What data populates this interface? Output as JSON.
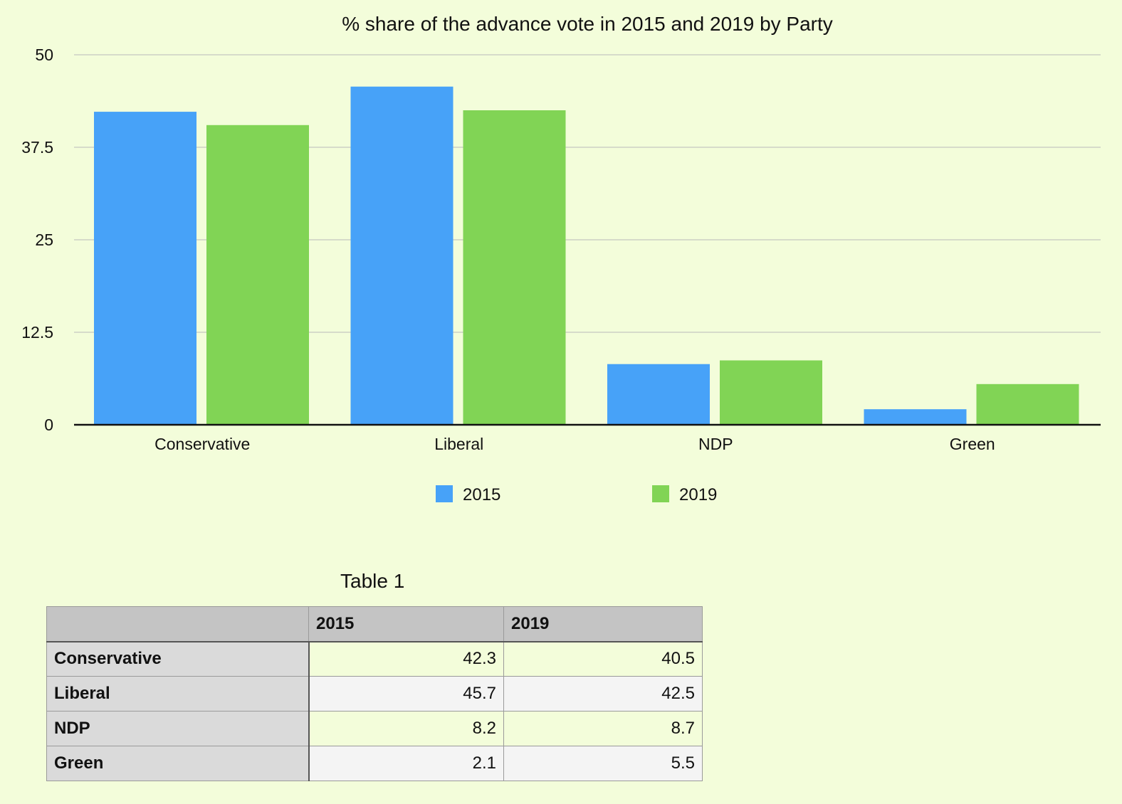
{
  "chart_data": {
    "type": "bar",
    "title": "% share of the advance vote in 2015 and 2019 by Party",
    "xlabel": "",
    "ylabel": "",
    "categories": [
      "Conservative",
      "Liberal",
      "NDP",
      "Green"
    ],
    "series": [
      {
        "name": "2015",
        "values": [
          42.3,
          45.7,
          8.2,
          2.1
        ],
        "color": "#47a2f8"
      },
      {
        "name": "2019",
        "values": [
          40.5,
          42.5,
          8.7,
          5.5
        ],
        "color": "#81d455"
      }
    ],
    "ylim": [
      0,
      50
    ],
    "yticks": [
      0,
      12.5,
      25,
      37.5,
      50
    ],
    "ytick_labels": [
      "0",
      "12.5",
      "25",
      "37.5",
      "50"
    ],
    "grid": true,
    "legend": "bottom-center"
  },
  "table": {
    "title": "Table 1",
    "headers": [
      "",
      "2015",
      "2019"
    ],
    "rows": [
      {
        "label": "Conservative",
        "v2015": "42.3",
        "v2019": "40.5"
      },
      {
        "label": "Liberal",
        "v2015": "45.7",
        "v2019": "42.5"
      },
      {
        "label": "NDP",
        "v2015": "8.2",
        "v2019": "8.7"
      },
      {
        "label": "Green",
        "v2015": "2.1",
        "v2019": "5.5"
      }
    ]
  }
}
